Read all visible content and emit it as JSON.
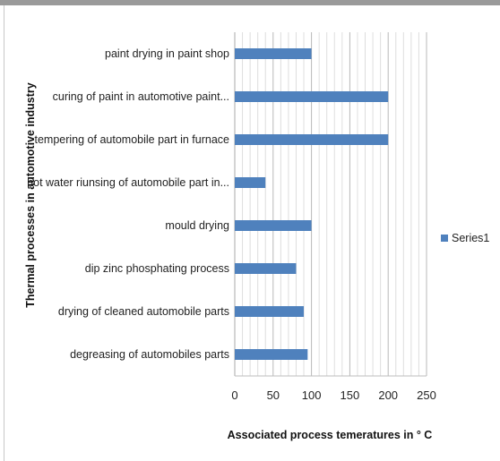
{
  "chart_data": {
    "type": "bar",
    "orientation": "horizontal",
    "categories": [
      "degreasing of automobiles parts",
      "drying of cleaned automobile parts",
      "dip zinc phosphating process",
      "mould drying",
      "hot water riunsing of automobile part in...",
      "tempering of automobile part in furnace",
      "curing of paint in automotive paint...",
      "paint drying in paint shop"
    ],
    "series": [
      {
        "name": "Series1",
        "values": [
          95,
          90,
          80,
          100,
          40,
          200,
          200,
          100
        ]
      }
    ],
    "xlim": [
      0,
      250
    ],
    "x_ticks": [
      "0",
      "50",
      "100",
      "150",
      "200",
      "250"
    ],
    "xlabel": "Associated process temeratures in ° C",
    "ylabel": "Thermal processes in automotive industry",
    "grid": true,
    "legend": "right",
    "colors": {
      "bar": "#4f81bd",
      "grid": "#c9c9c9"
    }
  }
}
